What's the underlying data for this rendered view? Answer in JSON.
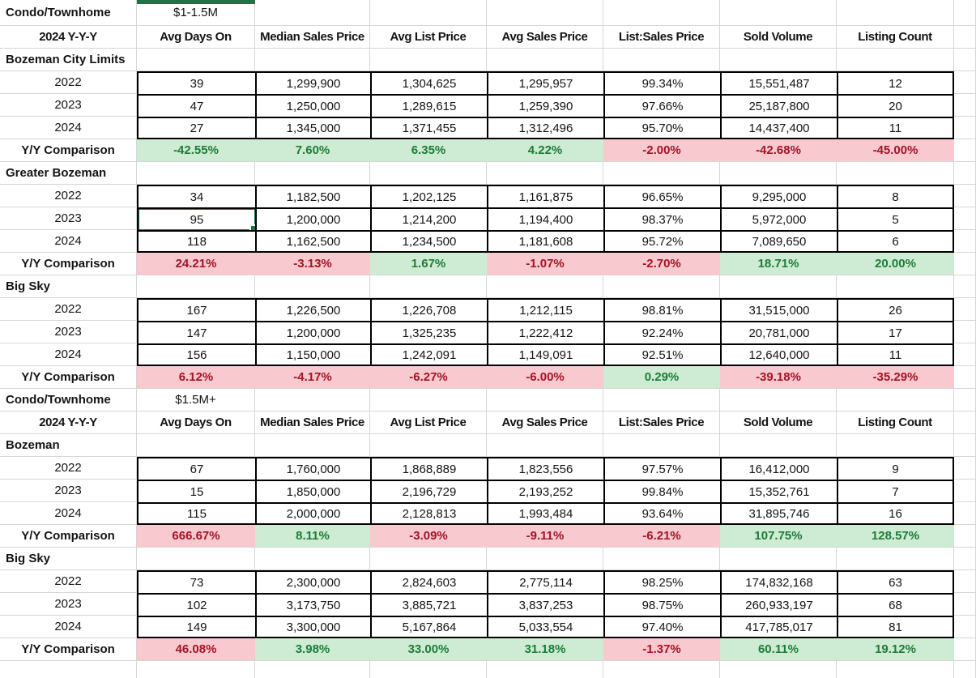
{
  "colors": {
    "good-bg": "#cdecd3",
    "good-text": "#1e7b38",
    "bad-bg": "#f8c9cf",
    "bad-text": "#a31326",
    "selection": "#1f7346",
    "grid": "#d6d6d6",
    "cell-border": "#000000"
  },
  "selection": {
    "table": 0,
    "section": 1,
    "row": 1,
    "col": 0,
    "value": "95"
  },
  "tables": [
    {
      "title": "Condo/Townhome",
      "price_range": "$1-1.5M",
      "header": [
        "2024 Y-Y-Y",
        "Avg Days On",
        "Median Sales Price",
        "Avg List Price",
        "Avg Sales Price",
        "List:Sales Price",
        "Sold Volume",
        "Listing Count"
      ],
      "sections": [
        {
          "name": "Bozeman City Limits",
          "rows": [
            {
              "year": "2022",
              "values": [
                "39",
                "1,299,900",
                "1,304,625",
                "1,295,957",
                "99.34%",
                "15,551,487",
                "12"
              ]
            },
            {
              "year": "2023",
              "values": [
                "47",
                "1,250,000",
                "1,289,615",
                "1,259,390",
                "97.66%",
                "25,187,800",
                "20"
              ]
            },
            {
              "year": "2024",
              "values": [
                "27",
                "1,345,000",
                "1,371,455",
                "1,312,496",
                "95.70%",
                "14,437,400",
                "11"
              ]
            }
          ],
          "yy": {
            "label": "Y/Y Comparison",
            "values": [
              {
                "text": "-42.55%",
                "state": "good"
              },
              {
                "text": "7.60%",
                "state": "good"
              },
              {
                "text": "6.35%",
                "state": "good"
              },
              {
                "text": "4.22%",
                "state": "good"
              },
              {
                "text": "-2.00%",
                "state": "bad"
              },
              {
                "text": "-42.68%",
                "state": "bad"
              },
              {
                "text": "-45.00%",
                "state": "bad"
              }
            ]
          }
        },
        {
          "name": "Greater Bozeman",
          "rows": [
            {
              "year": "2022",
              "values": [
                "34",
                "1,182,500",
                "1,202,125",
                "1,161,875",
                "96.65%",
                "9,295,000",
                "8"
              ]
            },
            {
              "year": "2023",
              "values": [
                "95",
                "1,200,000",
                "1,214,200",
                "1,194,400",
                "98.37%",
                "5,972,000",
                "5"
              ]
            },
            {
              "year": "2024",
              "values": [
                "118",
                "1,162,500",
                "1,234,500",
                "1,181,608",
                "95.72%",
                "7,089,650",
                "6"
              ]
            }
          ],
          "yy": {
            "label": "Y/Y Comparison",
            "values": [
              {
                "text": "24.21%",
                "state": "bad"
              },
              {
                "text": "-3.13%",
                "state": "bad"
              },
              {
                "text": "1.67%",
                "state": "good"
              },
              {
                "text": "-1.07%",
                "state": "bad"
              },
              {
                "text": "-2.70%",
                "state": "bad"
              },
              {
                "text": "18.71%",
                "state": "good"
              },
              {
                "text": "20.00%",
                "state": "good"
              }
            ]
          }
        },
        {
          "name": "Big Sky",
          "rows": [
            {
              "year": "2022",
              "values": [
                "167",
                "1,226,500",
                "1,226,708",
                "1,212,115",
                "98.81%",
                "31,515,000",
                "26"
              ]
            },
            {
              "year": "2023",
              "values": [
                "147",
                "1,200,000",
                "1,325,235",
                "1,222,412",
                "92.24%",
                "20,781,000",
                "17"
              ]
            },
            {
              "year": "2024",
              "values": [
                "156",
                "1,150,000",
                "1,242,091",
                "1,149,091",
                "92.51%",
                "12,640,000",
                "11"
              ]
            }
          ],
          "yy": {
            "label": "Y/Y Comparison",
            "values": [
              {
                "text": "6.12%",
                "state": "bad"
              },
              {
                "text": "-4.17%",
                "state": "bad"
              },
              {
                "text": "-6.27%",
                "state": "bad"
              },
              {
                "text": "-6.00%",
                "state": "bad"
              },
              {
                "text": "0.29%",
                "state": "good"
              },
              {
                "text": "-39.18%",
                "state": "bad"
              },
              {
                "text": "-35.29%",
                "state": "bad"
              }
            ]
          }
        }
      ]
    },
    {
      "title": "Condo/Townhome",
      "price_range": "$1.5M+",
      "header": [
        "2024 Y-Y-Y",
        "Avg Days On",
        "Median Sales Price",
        "Avg List Price",
        "Avg Sales Price",
        "List:Sales Price",
        "Sold Volume",
        "Listing Count"
      ],
      "sections": [
        {
          "name": "Bozeman",
          "rows": [
            {
              "year": "2022",
              "values": [
                "67",
                "1,760,000",
                "1,868,889",
                "1,823,556",
                "97.57%",
                "16,412,000",
                "9"
              ]
            },
            {
              "year": "2023",
              "values": [
                "15",
                "1,850,000",
                "2,196,729",
                "2,193,252",
                "99.84%",
                "15,352,761",
                "7"
              ]
            },
            {
              "year": "2024",
              "values": [
                "115",
                "2,000,000",
                "2,128,813",
                "1,993,484",
                "93.64%",
                "31,895,746",
                "16"
              ]
            }
          ],
          "yy": {
            "label": "Y/Y Comparison",
            "values": [
              {
                "text": "666.67%",
                "state": "bad"
              },
              {
                "text": "8.11%",
                "state": "good"
              },
              {
                "text": "-3.09%",
                "state": "bad"
              },
              {
                "text": "-9.11%",
                "state": "bad"
              },
              {
                "text": "-6.21%",
                "state": "bad"
              },
              {
                "text": "107.75%",
                "state": "good"
              },
              {
                "text": "128.57%",
                "state": "good"
              }
            ]
          }
        },
        {
          "name": "Big Sky",
          "rows": [
            {
              "year": "2022",
              "values": [
                "73",
                "2,300,000",
                "2,824,603",
                "2,775,114",
                "98.25%",
                "174,832,168",
                "63"
              ]
            },
            {
              "year": "2023",
              "values": [
                "102",
                "3,173,750",
                "3,885,721",
                "3,837,253",
                "98.75%",
                "260,933,197",
                "68"
              ]
            },
            {
              "year": "2024",
              "values": [
                "149",
                "3,300,000",
                "5,167,864",
                "5,033,554",
                "97.40%",
                "417,785,017",
                "81"
              ]
            }
          ],
          "yy": {
            "label": "Y/Y Comparison",
            "values": [
              {
                "text": "46.08%",
                "state": "bad"
              },
              {
                "text": "3.98%",
                "state": "good"
              },
              {
                "text": "33.00%",
                "state": "good"
              },
              {
                "text": "31.18%",
                "state": "good"
              },
              {
                "text": "-1.37%",
                "state": "bad"
              },
              {
                "text": "60.11%",
                "state": "good"
              },
              {
                "text": "19.12%",
                "state": "good"
              }
            ]
          }
        }
      ]
    }
  ]
}
